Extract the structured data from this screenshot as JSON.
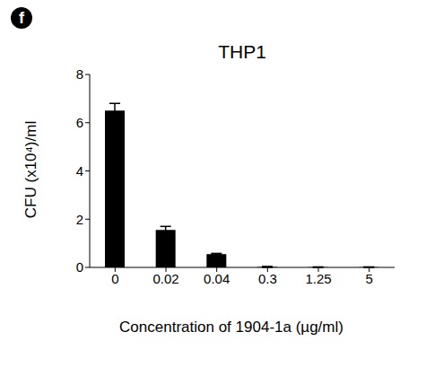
{
  "chart_data": {
    "type": "bar",
    "title": "THP1",
    "annotation": "f",
    "x_label": "Concentration of 1904-1a (µg/ml)",
    "y_label": "CFU (x10⁴)/ml",
    "categories": [
      "0",
      "0.02",
      "0.04",
      "0.3",
      "1.25",
      "5"
    ],
    "values": [
      6.5,
      1.55,
      0.55,
      0.02,
      0.01,
      0.01
    ],
    "errors": [
      0.3,
      0.15,
      0.03,
      0.02,
      0.01,
      0.01
    ],
    "color": "#000000",
    "ylim": [
      0,
      8
    ],
    "yticks": [
      0,
      2,
      4,
      6,
      8
    ],
    "grid": false
  }
}
